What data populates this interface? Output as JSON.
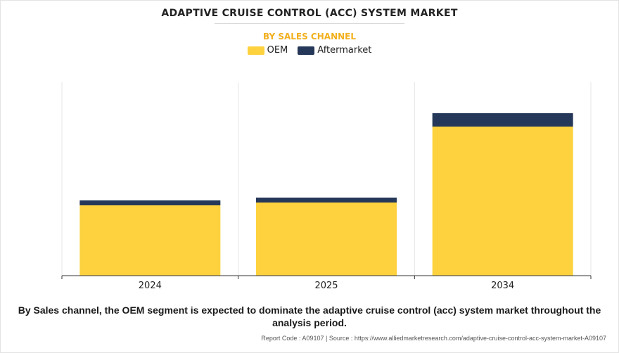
{
  "chart_data": {
    "type": "bar",
    "stacked": true,
    "title": "ADAPTIVE CRUISE CONTROL (ACC) SYSTEM MARKET",
    "subtitle": "BY SALES CHANNEL",
    "categories": [
      "2024",
      "2025",
      "2034"
    ],
    "series": [
      {
        "name": "OEM",
        "color": "#fdd23e",
        "values": [
          100,
          104,
          212
        ]
      },
      {
        "name": "Aftermarket",
        "color": "#253859",
        "values": [
          7,
          7,
          19
        ]
      }
    ],
    "ylim": [
      0,
      275
    ],
    "xlabel": "",
    "ylabel": "",
    "legend": "top-center",
    "grid": "vertical"
  },
  "caption": "By Sales channel, the OEM segment is expected to dominate the adaptive cruise control (acc) system market throughout the analysis period.",
  "footer": {
    "report_code": "Report Code : A09107",
    "separator": "|",
    "source": "Source : https://www.alliedmarketresearch.com/adaptive-cruise-control-acc-system-market-A09107"
  }
}
